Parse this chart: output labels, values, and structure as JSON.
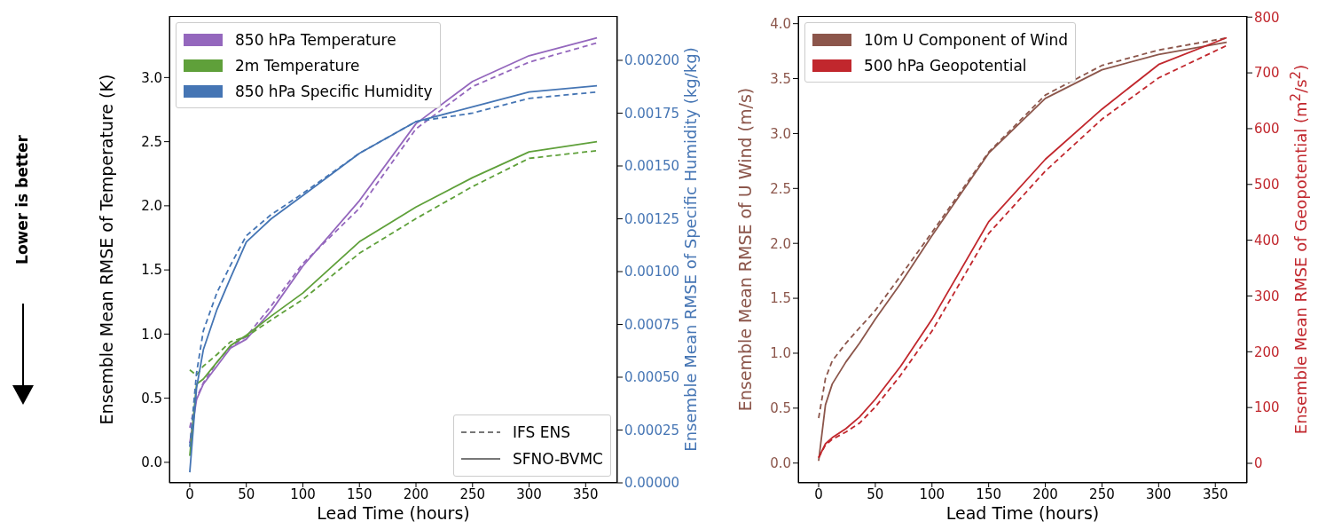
{
  "chart_data": [
    {
      "type": "other",
      "annotations": [
        "Lower is better"
      ]
    },
    {
      "type": "line",
      "xlabel": "Lead Time (hours)",
      "ylabel": "Ensemble Mean RMSE of Temperature (K)",
      "y2label": "Ensemble Mean RMSE of Specific Humidity (kg/kg)",
      "legend": "top left",
      "annotations": [
        "IFS ENS",
        "SFNO-BVMC"
      ],
      "x": [
        0,
        6,
        12,
        24,
        36,
        50,
        72,
        100,
        150,
        200,
        250,
        300,
        360
      ],
      "xlim": [
        -18,
        378
      ],
      "xticks": [
        0,
        50,
        100,
        150,
        200,
        250,
        300,
        350
      ],
      "ylim": [
        -0.16,
        3.48
      ],
      "yticks": [
        {
          "value": 0,
          "label": "0.0"
        },
        {
          "value": 0.5,
          "label": "0.5"
        },
        {
          "value": 1,
          "label": "1.0"
        },
        {
          "value": 1.5,
          "label": "1.5"
        },
        {
          "value": 2,
          "label": "2.0"
        },
        {
          "value": 2.5,
          "label": "2.5"
        },
        {
          "value": 3,
          "label": "3.0"
        }
      ],
      "y2lim": [
        0,
        0.00221
      ],
      "y2ticks": [
        {
          "value": 0,
          "label": "0.00000"
        },
        {
          "value": 0.00025,
          "label": "0.00025"
        },
        {
          "value": 0.0005,
          "label": "0.00050"
        },
        {
          "value": 0.00075,
          "label": "0.00075"
        },
        {
          "value": 0.001,
          "label": "0.00100"
        },
        {
          "value": 0.00125,
          "label": "0.00125"
        },
        {
          "value": 0.0015,
          "label": "0.00150"
        },
        {
          "value": 0.00175,
          "label": "0.00175"
        },
        {
          "value": 0.002,
          "label": "0.00200"
        }
      ],
      "series": [
        {
          "color": "#9467bd",
          "line_style": "dashed",
          "values": [
            0.27,
            0.5,
            0.62,
            0.78,
            0.9,
            0.98,
            1.22,
            1.55,
            1.98,
            2.6,
            2.93,
            3.12,
            3.27
          ]
        },
        {
          "name": "850 hPa Temperature",
          "color": "#9467bd",
          "line_style": "solid",
          "values": [
            0.15,
            0.49,
            0.61,
            0.75,
            0.89,
            0.96,
            1.18,
            1.53,
            2.04,
            2.64,
            2.97,
            3.17,
            3.31
          ]
        },
        {
          "color": "#5fa03a",
          "line_style": "dashed",
          "values": [
            0.72,
            0.68,
            0.75,
            0.84,
            0.94,
            0.98,
            1.11,
            1.27,
            1.63,
            1.9,
            2.15,
            2.37,
            2.43
          ]
        },
        {
          "name": "2m Temperature",
          "color": "#5fa03a",
          "line_style": "solid",
          "values": [
            0.05,
            0.61,
            0.65,
            0.78,
            0.91,
            0.99,
            1.14,
            1.32,
            1.72,
            1.99,
            2.22,
            2.42,
            2.5
          ]
        },
        {
          "color": "#4575b4",
          "line_style": "dashed",
          "axis": "y2",
          "values": [
            0.00017,
            0.00052,
            0.00072,
            0.0009,
            0.00103,
            0.00117,
            0.00127,
            0.00137,
            0.00156,
            0.00171,
            0.00175,
            0.00182,
            0.00185
          ]
        },
        {
          "name": "850 hPa Specific Humidity",
          "color": "#4575b4",
          "line_style": "solid",
          "axis": "y2",
          "values": [
            5e-05,
            0.00045,
            0.00063,
            0.00082,
            0.00097,
            0.00114,
            0.00125,
            0.00136,
            0.00156,
            0.00171,
            0.00178,
            0.00185,
            0.00188
          ]
        }
      ]
    },
    {
      "type": "line",
      "xlabel": "Lead Time (hours)",
      "ylabel": "Ensemble Mean RMSE of U Wind (m/s)",
      "y2label": "Ensemble Mean RMSE of Geopotential (m$^{2}$/s$^{2}$)",
      "legend": "top left",
      "x": [
        0,
        6,
        12,
        24,
        36,
        50,
        72,
        100,
        150,
        200,
        250,
        300,
        360
      ],
      "xlim": [
        -18,
        378
      ],
      "xticks": [
        0,
        50,
        100,
        150,
        200,
        250,
        300,
        350
      ],
      "ylim": [
        -0.18,
        4.07
      ],
      "yticks": [
        {
          "value": 0,
          "label": "0.0"
        },
        {
          "value": 0.5,
          "label": "0.5"
        },
        {
          "value": 1,
          "label": "1.0"
        },
        {
          "value": 1.5,
          "label": "1.5"
        },
        {
          "value": 2,
          "label": "2.0"
        },
        {
          "value": 2.5,
          "label": "2.5"
        },
        {
          "value": 3,
          "label": "3.0"
        },
        {
          "value": 3.5,
          "label": "3.5"
        },
        {
          "value": 4,
          "label": "4.0"
        }
      ],
      "y2lim": [
        -35,
        802
      ],
      "y2ticks": [
        0,
        100,
        200,
        300,
        400,
        500,
        600,
        700,
        800
      ],
      "series": [
        {
          "color": "#8c564b",
          "line_style": "dashed",
          "values": [
            0.41,
            0.77,
            0.93,
            1.09,
            1.23,
            1.39,
            1.7,
            2.1,
            2.83,
            3.35,
            3.62,
            3.76,
            3.87
          ]
        },
        {
          "name": "10m U Component of Wind",
          "color": "#8c564b",
          "line_style": "solid",
          "values": [
            0.02,
            0.53,
            0.72,
            0.92,
            1.09,
            1.31,
            1.63,
            2.07,
            2.82,
            3.32,
            3.58,
            3.72,
            3.83
          ]
        },
        {
          "color": "#c1272d",
          "line_style": "dashed",
          "axis": "y2",
          "values": [
            10,
            33,
            43,
            56,
            72,
            101,
            157,
            237,
            412,
            524,
            617,
            691,
            749
          ]
        },
        {
          "name": "500 hPa Geopotential",
          "color": "#c1272d",
          "line_style": "solid",
          "axis": "y2",
          "values": [
            10,
            35,
            46,
            62,
            83,
            115,
            173,
            258,
            433,
            545,
            635,
            715,
            763
          ]
        }
      ]
    }
  ]
}
